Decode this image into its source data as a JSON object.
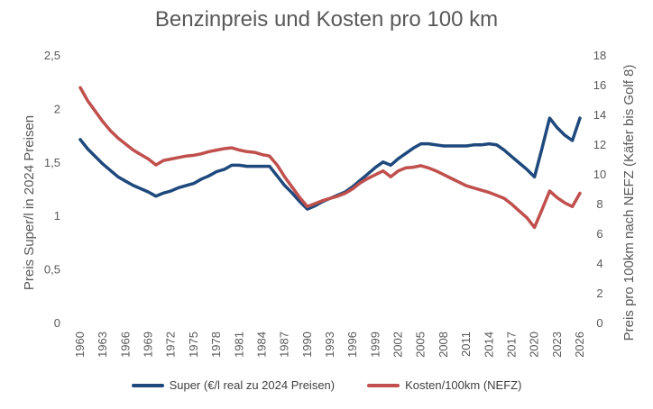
{
  "chart_data": {
    "type": "line",
    "title": "Benzinpreis und Kosten pro 100 km",
    "ylabel_left": "Preis Super/l in 2024 Preisen",
    "ylabel_right": "Preis pro 100km nach NEFZ (Käfer bis Golf 8)",
    "ylim_left": [
      0,
      2.5
    ],
    "ylim_right": [
      0,
      18
    ],
    "yticks_left": [
      "0",
      "0,5",
      "1",
      "1,5",
      "2",
      "2,5"
    ],
    "yticks_left_values": [
      0,
      0.5,
      1,
      1.5,
      2,
      2.5
    ],
    "yticks_right": [
      "0",
      "2",
      "4",
      "6",
      "8",
      "10",
      "12",
      "14",
      "16",
      "18"
    ],
    "yticks_right_values": [
      0,
      2,
      4,
      6,
      8,
      10,
      12,
      14,
      16,
      18
    ],
    "xlim": [
      1960,
      2026
    ],
    "xticks": [
      "1960",
      "1963",
      "1966",
      "1969",
      "1972",
      "1975",
      "1978",
      "1981",
      "1984",
      "1987",
      "1990",
      "1993",
      "1996",
      "1999",
      "2002",
      "2005",
      "2008",
      "2011",
      "2014",
      "2017",
      "2020",
      "2023",
      "2026"
    ],
    "series": [
      {
        "name": "Super (€/l real zu 2024 Preisen)",
        "axis": "left",
        "color": "#1F497D",
        "x": [
          1960,
          1961,
          1962,
          1963,
          1964,
          1965,
          1966,
          1967,
          1968,
          1969,
          1970,
          1971,
          1972,
          1973,
          1974,
          1975,
          1976,
          1977,
          1978,
          1979,
          1980,
          1981,
          1982,
          1983,
          1984,
          1985,
          1986,
          1987,
          1988,
          1989,
          1990,
          1991,
          1992,
          1993,
          1994,
          1995,
          1996,
          1997,
          1998,
          1999,
          2000,
          2001,
          2002,
          2003,
          2004,
          2005,
          2006,
          2007,
          2008,
          2009,
          2010,
          2011,
          2012,
          2013,
          2014,
          2015,
          2016,
          2017,
          2018,
          2019,
          2020,
          2021,
          2022,
          2023,
          2024,
          2025,
          2026
        ],
        "values": [
          1.71,
          1.62,
          1.55,
          1.48,
          1.42,
          1.36,
          1.32,
          1.28,
          1.25,
          1.22,
          1.18,
          1.21,
          1.23,
          1.26,
          1.28,
          1.3,
          1.34,
          1.37,
          1.41,
          1.43,
          1.47,
          1.47,
          1.46,
          1.46,
          1.46,
          1.46,
          1.37,
          1.28,
          1.21,
          1.13,
          1.06,
          1.09,
          1.13,
          1.16,
          1.19,
          1.22,
          1.27,
          1.33,
          1.39,
          1.45,
          1.5,
          1.47,
          1.53,
          1.58,
          1.63,
          1.67,
          1.67,
          1.66,
          1.65,
          1.65,
          1.65,
          1.65,
          1.66,
          1.66,
          1.67,
          1.66,
          1.61,
          1.55,
          1.49,
          1.43,
          1.36,
          1.63,
          1.91,
          1.82,
          1.75,
          1.7,
          1.91
        ]
      },
      {
        "name": "Kosten/100km (NEFZ)",
        "axis": "right",
        "color": "#C0504D",
        "x": [
          1960,
          1961,
          1962,
          1963,
          1964,
          1965,
          1966,
          1967,
          1968,
          1969,
          1970,
          1971,
          1972,
          1973,
          1974,
          1975,
          1976,
          1977,
          1978,
          1979,
          1980,
          1981,
          1982,
          1983,
          1984,
          1985,
          1986,
          1987,
          1988,
          1989,
          1990,
          1991,
          1992,
          1993,
          1994,
          1995,
          1996,
          1997,
          1998,
          1999,
          2000,
          2001,
          2002,
          2003,
          2004,
          2005,
          2006,
          2007,
          2008,
          2009,
          2010,
          2011,
          2012,
          2013,
          2014,
          2015,
          2016,
          2017,
          2018,
          2019,
          2020,
          2021,
          2022,
          2023,
          2024,
          2025,
          2026
        ],
        "values": [
          15.8,
          14.9,
          14.2,
          13.5,
          12.9,
          12.4,
          12.0,
          11.6,
          11.3,
          11.0,
          10.6,
          10.9,
          11.0,
          11.1,
          11.2,
          11.25,
          11.35,
          11.5,
          11.6,
          11.7,
          11.75,
          11.6,
          11.5,
          11.45,
          11.3,
          11.2,
          10.6,
          9.8,
          9.1,
          8.4,
          7.8,
          8.0,
          8.2,
          8.35,
          8.5,
          8.7,
          9.0,
          9.4,
          9.7,
          9.95,
          10.2,
          9.8,
          10.2,
          10.4,
          10.45,
          10.55,
          10.4,
          10.2,
          9.95,
          9.7,
          9.45,
          9.2,
          9.05,
          8.9,
          8.75,
          8.55,
          8.35,
          7.95,
          7.5,
          7.05,
          6.4,
          7.6,
          8.85,
          8.4,
          8.05,
          7.8,
          8.7
        ]
      }
    ],
    "grid": false,
    "legend_position": "bottom"
  }
}
